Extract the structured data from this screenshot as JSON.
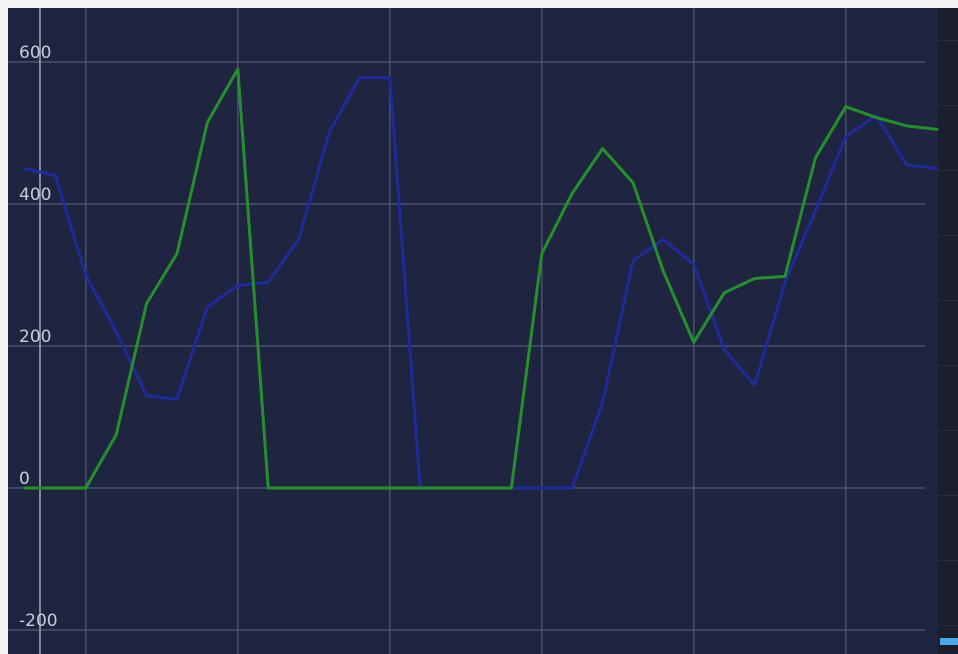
{
  "chart_data": {
    "type": "line",
    "title": "",
    "xlabel": "",
    "ylabel": "",
    "x": [
      0,
      1,
      2,
      3,
      4,
      5,
      6,
      7,
      8,
      9,
      10,
      11,
      12,
      13,
      14,
      15,
      16,
      17,
      18,
      19,
      20,
      21,
      22,
      23,
      24,
      25,
      26,
      27,
      28,
      29,
      30
    ],
    "ylim": [
      -200,
      600
    ],
    "y_ticks": [
      "600",
      "400",
      "200",
      "0",
      "-200"
    ],
    "y_tick_values": [
      600,
      400,
      200,
      0,
      -200
    ],
    "grid": true,
    "legend": "none",
    "series": [
      {
        "color": "#1f2a9c",
        "values": [
          450,
          440,
          300,
          220,
          130,
          125,
          255,
          285,
          290,
          350,
          500,
          578,
          578,
          0,
          0,
          0,
          0,
          0,
          0,
          120,
          320,
          350,
          315,
          195,
          145,
          290,
          390,
          495,
          525,
          455,
          450
        ]
      },
      {
        "color": "#23912a",
        "values": [
          0,
          0,
          0,
          75,
          260,
          330,
          515,
          590,
          0,
          0,
          0,
          0,
          0,
          0,
          0,
          0,
          0,
          330,
          415,
          478,
          430,
          305,
          205,
          275,
          295,
          298,
          465,
          537,
          522,
          510,
          505
        ]
      }
    ],
    "colors": {
      "plot_background": "#1f2440",
      "grid": "#4c526e",
      "right_panel": "#1b1e2d",
      "accent": "#4aa8e8"
    }
  }
}
